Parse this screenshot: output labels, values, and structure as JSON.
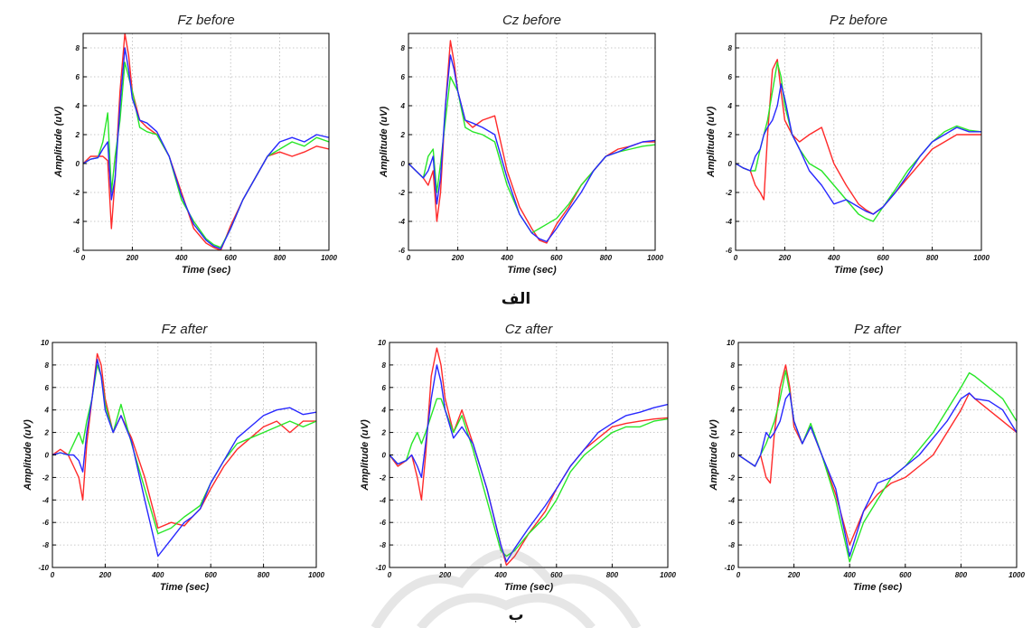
{
  "figure": {
    "label_a": "الف",
    "label_b": "ب"
  },
  "colors": {
    "series_1": "#ff2a2a",
    "series_2": "#28e628",
    "series_3": "#2828ff",
    "grid": "#b9b9b9",
    "axis": "#000000"
  },
  "chart_data": [
    {
      "type": "line",
      "title": "Fz before",
      "xlabel": "Time (sec)",
      "ylabel": "Amplitude (uV)",
      "xlim": [
        0,
        1000
      ],
      "ylim": [
        -6,
        9
      ],
      "xticks": [
        0,
        200,
        400,
        600,
        800,
        1000
      ],
      "yticks": [
        -6,
        -4,
        -2,
        0,
        2,
        4,
        6,
        8
      ],
      "grid": true,
      "x": [
        0,
        30,
        60,
        80,
        100,
        115,
        130,
        150,
        170,
        185,
        200,
        230,
        260,
        300,
        350,
        400,
        450,
        500,
        530,
        560,
        600,
        650,
        700,
        750,
        800,
        850,
        900,
        950,
        1000
      ],
      "series": [
        {
          "color": "series_1",
          "values": [
            0,
            0.5,
            0.5,
            0.5,
            0.2,
            -4.5,
            -1,
            5,
            9,
            7.5,
            5,
            3,
            2.5,
            2,
            0.5,
            -2,
            -4.5,
            -5.5,
            -5.8,
            -6,
            -4.3,
            -2.5,
            -1,
            0.5,
            0.8,
            0.5,
            0.8,
            1.2,
            1
          ]
        },
        {
          "color": "series_2",
          "values": [
            0,
            0.3,
            0.4,
            1.5,
            3.5,
            -2,
            0.5,
            3,
            7,
            6,
            5,
            2.5,
            2.2,
            2,
            0.5,
            -2.5,
            -4,
            -5.2,
            -5.6,
            -5.8,
            -4.5,
            -2.5,
            -1,
            0.5,
            1,
            1.5,
            1.2,
            1.8,
            1.5
          ]
        },
        {
          "color": "series_3",
          "values": [
            0,
            0.3,
            0.4,
            1,
            1.5,
            -2.5,
            -1,
            4,
            8,
            6.5,
            4.5,
            3,
            2.8,
            2.2,
            0.5,
            -2.2,
            -4.2,
            -5.3,
            -5.7,
            -5.9,
            -4.5,
            -2.5,
            -1,
            0.5,
            1.5,
            1.8,
            1.5,
            2,
            1.8
          ]
        }
      ]
    },
    {
      "type": "line",
      "title": "Cz before",
      "xlabel": "Time (sec)",
      "ylabel": "Amplitude (uV)",
      "xlim": [
        0,
        1000
      ],
      "ylim": [
        -6,
        9
      ],
      "xticks": [
        0,
        200,
        400,
        600,
        800,
        1000
      ],
      "yticks": [
        -6,
        -4,
        -2,
        0,
        2,
        4,
        6,
        8
      ],
      "grid": true,
      "x": [
        0,
        30,
        60,
        80,
        100,
        115,
        130,
        150,
        170,
        185,
        200,
        230,
        260,
        300,
        350,
        400,
        450,
        500,
        530,
        560,
        600,
        650,
        700,
        750,
        800,
        850,
        900,
        950,
        1000
      ],
      "series": [
        {
          "color": "series_1",
          "values": [
            0,
            -0.5,
            -1,
            -1.5,
            -0.5,
            -4,
            -2,
            4,
            8.5,
            7,
            5,
            3,
            2.5,
            3,
            3.3,
            -0.5,
            -3,
            -4.5,
            -5.3,
            -5.5,
            -4.2,
            -3,
            -1.5,
            -0.5,
            0.5,
            1,
            1.2,
            1.5,
            1.5
          ]
        },
        {
          "color": "series_2",
          "values": [
            0,
            -0.5,
            -1,
            0.5,
            1,
            -2,
            0,
            3,
            6,
            5.5,
            5,
            2.5,
            2.2,
            2,
            1.5,
            -1.5,
            -3.5,
            -4.8,
            -4.5,
            -4.2,
            -3.8,
            -2.8,
            -1.5,
            -0.5,
            0.5,
            0.8,
            1,
            1.2,
            1.3
          ]
        },
        {
          "color": "series_3",
          "values": [
            0,
            -0.5,
            -1,
            -0.5,
            0.5,
            -2.8,
            -1,
            4,
            7.5,
            6.5,
            5,
            3,
            2.8,
            2.5,
            2,
            -1,
            -3.5,
            -4.8,
            -5.2,
            -5.4,
            -4.5,
            -3.2,
            -2,
            -0.5,
            0.5,
            0.8,
            1.2,
            1.5,
            1.6
          ]
        }
      ]
    },
    {
      "type": "line",
      "title": "Pz before",
      "xlabel": "Time (sec)",
      "ylabel": "Amplitude (uV)",
      "xlim": [
        0,
        1000
      ],
      "ylim": [
        -6,
        9
      ],
      "xticks": [
        0,
        200,
        400,
        600,
        800,
        1000
      ],
      "yticks": [
        -6,
        -4,
        -2,
        0,
        2,
        4,
        6,
        8
      ],
      "grid": true,
      "x": [
        0,
        30,
        60,
        80,
        100,
        115,
        130,
        150,
        170,
        185,
        200,
        230,
        260,
        300,
        350,
        400,
        450,
        500,
        530,
        560,
        600,
        650,
        700,
        750,
        800,
        850,
        900,
        950,
        1000
      ],
      "series": [
        {
          "color": "series_1",
          "values": [
            0,
            -0.3,
            -0.5,
            -1.5,
            -2,
            -2.5,
            2,
            6.5,
            7.2,
            5,
            3,
            2,
            1.5,
            2,
            2.5,
            0,
            -1.5,
            -2.8,
            -3.2,
            -3.5,
            -3,
            -2,
            -1,
            0,
            1,
            1.5,
            2,
            2,
            2
          ]
        },
        {
          "color": "series_2",
          "values": [
            0,
            -0.3,
            -0.5,
            -0.5,
            1,
            2,
            3,
            5,
            7,
            6,
            4,
            2,
            1,
            0,
            -0.5,
            -1.5,
            -2.5,
            -3.5,
            -3.8,
            -4,
            -3,
            -1.8,
            -0.5,
            0.5,
            1.5,
            2.2,
            2.6,
            2.3,
            2.2
          ]
        },
        {
          "color": "series_3",
          "values": [
            0,
            -0.3,
            -0.5,
            0.5,
            1,
            2,
            2.5,
            3,
            4,
            5.5,
            4.5,
            2,
            1,
            -0.5,
            -1.5,
            -2.8,
            -2.5,
            -3,
            -3.3,
            -3.5,
            -3,
            -2,
            -0.8,
            0.5,
            1.5,
            2,
            2.5,
            2.2,
            2.2
          ]
        }
      ]
    },
    {
      "type": "line",
      "title": "Fz after",
      "xlabel": "Time (sec)",
      "ylabel": "Amplitude (uV)",
      "xlim": [
        0,
        1000
      ],
      "ylim": [
        -10,
        10
      ],
      "xticks": [
        0,
        200,
        400,
        600,
        800,
        1000
      ],
      "yticks": [
        -10,
        -8,
        -6,
        -4,
        -2,
        0,
        2,
        4,
        6,
        8,
        10
      ],
      "grid": true,
      "x": [
        0,
        30,
        60,
        80,
        100,
        115,
        130,
        150,
        170,
        185,
        200,
        230,
        260,
        300,
        350,
        400,
        450,
        500,
        530,
        560,
        600,
        650,
        700,
        750,
        800,
        850,
        900,
        950,
        1000
      ],
      "series": [
        {
          "color": "series_1",
          "values": [
            0,
            0.5,
            0,
            -1,
            -2,
            -4,
            1,
            5,
            9,
            8,
            5,
            2,
            3.5,
            1.5,
            -2,
            -6.5,
            -6,
            -6.3,
            -5.5,
            -4.8,
            -3,
            -1,
            0.5,
            1.5,
            2.5,
            3,
            2,
            3,
            3
          ]
        },
        {
          "color": "series_2",
          "values": [
            0,
            0.2,
            0,
            1,
            2,
            1,
            3,
            5,
            8,
            7,
            4.5,
            2,
            4.5,
            1,
            -3,
            -7,
            -6.5,
            -5.5,
            -5,
            -4.5,
            -2.5,
            -0.5,
            1,
            1.5,
            2,
            2.5,
            3,
            2.5,
            3
          ]
        },
        {
          "color": "series_3",
          "values": [
            0,
            0.2,
            0,
            0,
            -0.5,
            -1.5,
            2,
            5,
            8.5,
            7,
            4,
            2,
            3.5,
            1.2,
            -4,
            -9,
            -7.5,
            -6,
            -5.5,
            -4.8,
            -2.5,
            -0.5,
            1.5,
            2.5,
            3.5,
            4,
            4.2,
            3.6,
            3.8
          ]
        }
      ]
    },
    {
      "type": "line",
      "title": "Cz after",
      "xlabel": "Time (sec)",
      "ylabel": "Amplitude (uV)",
      "xlim": [
        0,
        1000
      ],
      "ylim": [
        -10,
        10
      ],
      "xticks": [
        0,
        200,
        400,
        600,
        800,
        1000
      ],
      "yticks": [
        -10,
        -8,
        -6,
        -4,
        -2,
        0,
        2,
        4,
        6,
        8,
        10
      ],
      "grid": true,
      "x": [
        0,
        30,
        60,
        80,
        100,
        115,
        130,
        150,
        170,
        185,
        200,
        230,
        260,
        300,
        350,
        400,
        420,
        450,
        500,
        560,
        600,
        650,
        700,
        750,
        800,
        850,
        900,
        950,
        1000
      ],
      "series": [
        {
          "color": "series_1",
          "values": [
            0,
            -1,
            -0.5,
            0,
            -2,
            -4,
            0,
            7,
            9.5,
            8,
            5,
            2,
            4,
            1,
            -3,
            -8,
            -9.8,
            -9,
            -7,
            -5,
            -3,
            -1,
            0.5,
            1.5,
            2.5,
            2.8,
            3,
            3.2,
            3.3
          ]
        },
        {
          "color": "series_2",
          "values": [
            0,
            -0.8,
            -0.5,
            1,
            2,
            1,
            2,
            3.5,
            5,
            5,
            4,
            2,
            3.5,
            0.5,
            -4,
            -8.5,
            -9,
            -8.5,
            -7,
            -5.5,
            -4,
            -1.5,
            0,
            1,
            2,
            2.5,
            2.5,
            3,
            3.2
          ]
        },
        {
          "color": "series_3",
          "values": [
            0,
            -0.8,
            -0.5,
            0,
            -1,
            -2,
            1,
            5,
            8,
            6.5,
            4,
            1.5,
            2.5,
            1,
            -3,
            -8,
            -9.5,
            -8.3,
            -6.5,
            -4.5,
            -3,
            -1,
            0.5,
            2,
            2.8,
            3.5,
            3.8,
            4.2,
            4.5
          ]
        }
      ]
    },
    {
      "type": "line",
      "title": "Pz after",
      "xlabel": "Time (sec)",
      "ylabel": "Amplitude (uV)",
      "xlim": [
        0,
        1000
      ],
      "ylim": [
        -10,
        10
      ],
      "xticks": [
        0,
        200,
        400,
        600,
        800,
        1000
      ],
      "yticks": [
        -10,
        -8,
        -6,
        -4,
        -2,
        0,
        2,
        4,
        6,
        8,
        10
      ],
      "grid": true,
      "x": [
        0,
        30,
        60,
        80,
        100,
        115,
        130,
        150,
        170,
        185,
        200,
        230,
        260,
        300,
        350,
        400,
        450,
        500,
        550,
        600,
        650,
        700,
        750,
        800,
        830,
        850,
        900,
        950,
        1000
      ],
      "series": [
        {
          "color": "series_1",
          "values": [
            0,
            -0.5,
            -1,
            0,
            -2,
            -2.5,
            2,
            6,
            8,
            6,
            2.5,
            1,
            2.5,
            0,
            -3.5,
            -8,
            -5,
            -3.5,
            -2.5,
            -2,
            -1,
            0,
            2,
            4,
            5.5,
            5,
            4,
            3,
            2
          ]
        },
        {
          "color": "series_2",
          "values": [
            0,
            -0.5,
            -1,
            0,
            1,
            2,
            3,
            5,
            7.5,
            5.5,
            3,
            1,
            2.8,
            0,
            -4,
            -9.5,
            -6,
            -4,
            -2,
            -1,
            0.5,
            2,
            4,
            6,
            7.3,
            7,
            6,
            5,
            3
          ]
        },
        {
          "color": "series_3",
          "values": [
            0,
            -0.5,
            -1,
            0,
            2,
            1.5,
            2,
            3,
            5,
            5.5,
            3,
            1,
            2.5,
            0,
            -3,
            -9,
            -5,
            -2.5,
            -2,
            -1,
            0,
            1.5,
            3,
            5,
            5.5,
            5,
            4.8,
            4,
            2
          ]
        }
      ]
    }
  ]
}
